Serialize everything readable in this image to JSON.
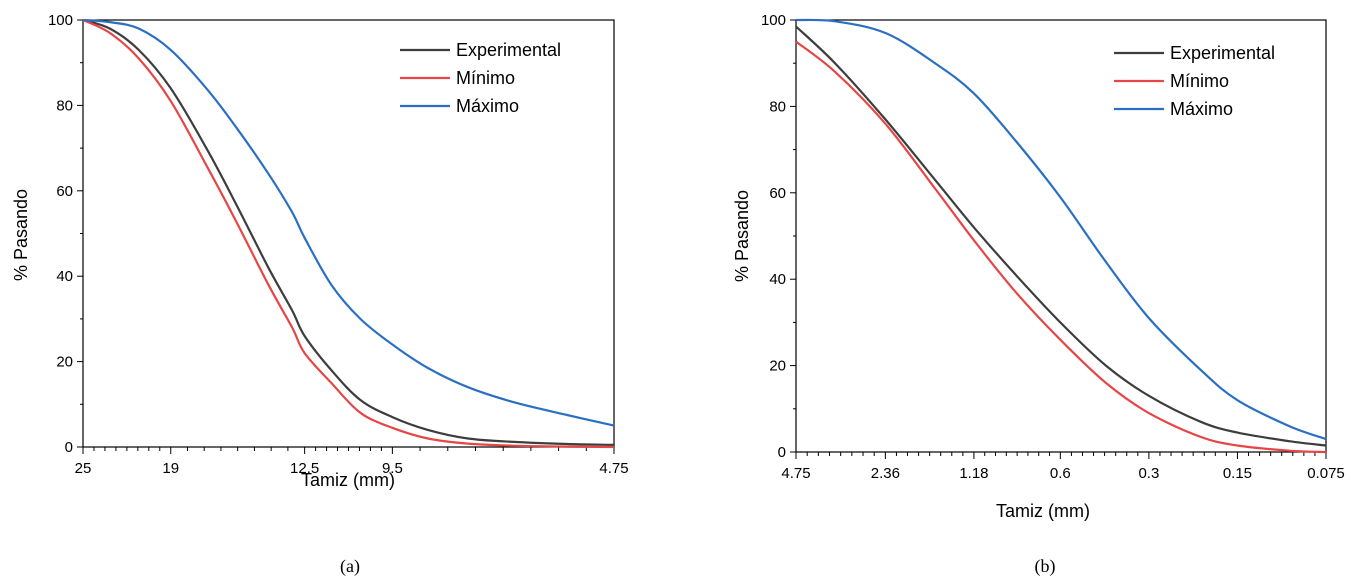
{
  "chart_data": [
    {
      "type": "line",
      "id": "a",
      "caption": "(a)",
      "xlabel": "Tamiz (mm)",
      "ylabel": "% Pasando",
      "x_scale": "log_reversed",
      "xlim": [
        25,
        4.75
      ],
      "ylim": [
        0,
        100
      ],
      "x_ticks": [
        {
          "value": 25,
          "label": "25"
        },
        {
          "value": 19,
          "label": "19"
        },
        {
          "value": 12.5,
          "label": "12.5"
        },
        {
          "value": 9.5,
          "label": "9.5"
        },
        {
          "value": 4.75,
          "label": "4.75"
        }
      ],
      "y_ticks": [
        {
          "value": 0,
          "label": "0"
        },
        {
          "value": 20,
          "label": "20"
        },
        {
          "value": 40,
          "label": "40"
        },
        {
          "value": 60,
          "label": "60"
        },
        {
          "value": 80,
          "label": "80"
        },
        {
          "value": 100,
          "label": "100"
        }
      ],
      "legend_position": "top-right",
      "series": [
        {
          "name": "Experimental",
          "color": "#3d3d3d",
          "x": [
            25,
            23,
            21,
            19,
            17,
            15.5,
            14,
            13,
            12.5,
            11.5,
            10.5,
            9.5,
            8.5,
            7.5,
            6.5,
            5.5,
            4.75
          ],
          "y": [
            100,
            98,
            93,
            84,
            70,
            57,
            42,
            32,
            26,
            18,
            11,
            7,
            4,
            2,
            1.2,
            0.7,
            0.5
          ]
        },
        {
          "name": "Mínimo",
          "color": "#e64646",
          "x": [
            25,
            23,
            21,
            19,
            17,
            15.5,
            14,
            13,
            12.5,
            11.5,
            10.5,
            9.5,
            8.5,
            7.5,
            6.5,
            5.5,
            4.75
          ],
          "y": [
            100,
            97,
            91,
            81,
            66,
            53,
            38,
            28,
            22,
            15,
            8,
            4.5,
            2,
            0.8,
            0.3,
            0.1,
            0
          ]
        },
        {
          "name": "Máximo",
          "color": "#2b6fc4",
          "x": [
            25,
            23,
            21,
            19,
            17,
            15.5,
            14,
            13,
            12.5,
            11.5,
            10.5,
            9.5,
            8.5,
            7.5,
            6.5,
            5.5,
            4.75
          ],
          "y": [
            100,
            99.5,
            98,
            93,
            84,
            75,
            64,
            55,
            49,
            38,
            30,
            24,
            18.5,
            14,
            10.5,
            7.5,
            5
          ]
        }
      ]
    },
    {
      "type": "line",
      "id": "b",
      "caption": "(b)",
      "xlabel": "Tamiz (mm)",
      "ylabel": "% Pasando",
      "x_scale": "log_reversed",
      "xlim": [
        4.75,
        0.075
      ],
      "ylim": [
        0,
        100
      ],
      "x_ticks": [
        {
          "value": 4.75,
          "label": "4.75"
        },
        {
          "value": 2.36,
          "label": "2.36"
        },
        {
          "value": 1.18,
          "label": "1.18"
        },
        {
          "value": 0.6,
          "label": "0.6"
        },
        {
          "value": 0.3,
          "label": "0.3"
        },
        {
          "value": 0.15,
          "label": "0.15"
        },
        {
          "value": 0.075,
          "label": "0.075"
        }
      ],
      "y_ticks": [
        {
          "value": 0,
          "label": "0"
        },
        {
          "value": 20,
          "label": "20"
        },
        {
          "value": 40,
          "label": "40"
        },
        {
          "value": 60,
          "label": "60"
        },
        {
          "value": 80,
          "label": "80"
        },
        {
          "value": 100,
          "label": "100"
        }
      ],
      "legend_position": "top-right",
      "series": [
        {
          "name": "Experimental",
          "color": "#3d3d3d",
          "x": [
            4.75,
            3.5,
            2.36,
            1.6,
            1.18,
            0.85,
            0.6,
            0.42,
            0.3,
            0.2,
            0.15,
            0.1,
            0.075
          ],
          "y": [
            98.5,
            90,
            77,
            63,
            52,
            41,
            30,
            20,
            13,
            7,
            4.5,
            2.5,
            1.5
          ]
        },
        {
          "name": "Mínimo",
          "color": "#e64646",
          "x": [
            4.75,
            3.5,
            2.36,
            1.6,
            1.18,
            0.85,
            0.6,
            0.42,
            0.3,
            0.2,
            0.15,
            0.1,
            0.075
          ],
          "y": [
            95,
            88,
            76,
            61,
            49,
            37,
            26,
            16,
            9,
            3.5,
            1.5,
            0.3,
            0
          ]
        },
        {
          "name": "Máximo",
          "color": "#2b6fc4",
          "x": [
            4.75,
            3.5,
            2.36,
            1.6,
            1.18,
            0.85,
            0.6,
            0.42,
            0.3,
            0.2,
            0.15,
            0.1,
            0.075
          ],
          "y": [
            100,
            99.7,
            97,
            90,
            83,
            72,
            59,
            44,
            31,
            19,
            12,
            6,
            3
          ]
        }
      ]
    }
  ]
}
